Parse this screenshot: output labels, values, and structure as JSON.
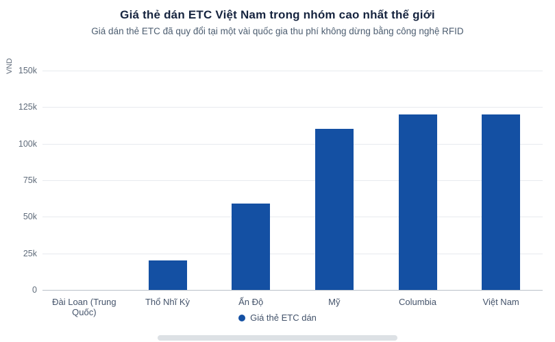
{
  "header": {
    "title": "Giá thẻ dán ETC Việt Nam trong nhóm cao nhất thế giới",
    "subtitle": "Giá dán thẻ ETC đã quy đổi tại một vài quốc gia thu phí không dừng bằng công nghệ RFID"
  },
  "colors": {
    "bar": "#1450A3",
    "title": "#16243f",
    "subtitle": "#4c5d70",
    "grid": "#e7eaee",
    "axis": "#b9c0c8"
  },
  "chart_data": {
    "type": "bar",
    "title": "Giá thẻ dán ETC Việt Nam trong nhóm cao nhất thế giới",
    "subtitle": "Giá dán thẻ ETC đã quy đổi tại một vài quốc gia thu phí không dừng bằng công nghệ RFID",
    "categories": [
      "Đài Loan (Trung Quốc)",
      "Thổ Nhĩ Kỳ",
      "Ấn Độ",
      "Mỹ",
      "Columbia",
      "Việt Nam"
    ],
    "series": [
      {
        "name": "Giá thẻ ETC dán",
        "values": [
          0,
          20000,
          59000,
          110000,
          120000,
          120000
        ]
      }
    ],
    "xlabel": "",
    "ylabel": "VND",
    "ylim": [
      0,
      150000
    ],
    "yticks": [
      0,
      25000,
      50000,
      75000,
      100000,
      125000,
      150000
    ],
    "ytick_labels": [
      "0",
      "25k",
      "50k",
      "75k",
      "100k",
      "125k",
      "150k"
    ],
    "grid": "horizontal",
    "legend_position": "bottom",
    "bar_color": "#1450A3"
  },
  "legend": {
    "items": [
      {
        "label": "Giá thẻ ETC dán",
        "color": "#1450A3"
      }
    ]
  }
}
